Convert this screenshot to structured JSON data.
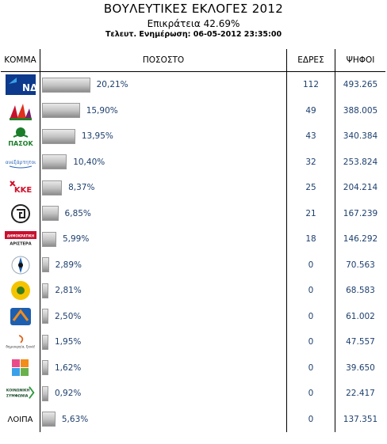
{
  "header": {
    "title": "ΒΟΥΛΕΥΤΙΚΕΣ ΕΚΛΟΓΕΣ 2012",
    "coverage": "Επικράτεια 42.69%",
    "updated": "Τελευτ. Ενημέρωση: 06-05-2012 23:35:00"
  },
  "columns": {
    "party": "ΚΟΜΜΑ",
    "percent": "ΠΟΣΟΣΤΟ",
    "seats": "ΕΔΡΕΣ",
    "votes": "ΨΗΦΟΙ"
  },
  "rows": [
    {
      "logo_icon": "nd-logo-icon",
      "logo_text": "ΝΔ",
      "percent": "20,21%",
      "share": 20.21,
      "seats": "112",
      "votes": "493.265"
    },
    {
      "logo_icon": "syriza-logo-icon",
      "logo_text": "",
      "percent": "15,90%",
      "share": 15.9,
      "seats": "49",
      "votes": "388.005"
    },
    {
      "logo_icon": "pasok-logo-icon",
      "logo_text": "ΠΑΣΟΚ",
      "percent": "13,95%",
      "share": 13.95,
      "seats": "43",
      "votes": "340.384"
    },
    {
      "logo_icon": "anel-logo-icon",
      "logo_text": "ανεξάρτητοι",
      "percent": "10,40%",
      "share": 10.4,
      "seats": "32",
      "votes": "253.824"
    },
    {
      "logo_icon": "kke-logo-icon",
      "logo_text": "ΚΚΕ",
      "percent": "8,37%",
      "share": 8.37,
      "seats": "25",
      "votes": "204.214"
    },
    {
      "logo_icon": "xa-logo-icon",
      "logo_text": "",
      "percent": "6,85%",
      "share": 6.85,
      "seats": "21",
      "votes": "167.239"
    },
    {
      "logo_icon": "dimar-logo-icon",
      "logo_text": "ΔΗΜΟΚΡΑΤΙΚΗ ΑΡΙΣΤΕΡΑ",
      "percent": "5,99%",
      "share": 5.99,
      "seats": "18",
      "votes": "146.292"
    },
    {
      "logo_icon": "laos-logo-icon",
      "logo_text": "",
      "percent": "2,89%",
      "share": 2.89,
      "seats": "0",
      "votes": "70.563"
    },
    {
      "logo_icon": "greens-logo-icon",
      "logo_text": "",
      "percent": "2,81%",
      "share": 2.81,
      "seats": "0",
      "votes": "68.583"
    },
    {
      "logo_icon": "da-logo-icon",
      "logo_text": "",
      "percent": "2,50%",
      "share": 2.5,
      "seats": "0",
      "votes": "61.002"
    },
    {
      "logo_icon": "drasi-logo-icon",
      "logo_text": "δημιουργία, ξανά!",
      "percent": "1,95%",
      "share": 1.95,
      "seats": "0",
      "votes": "47.557"
    },
    {
      "logo_icon": "party12-logo-icon",
      "logo_text": "",
      "percent": "1,62%",
      "share": 1.62,
      "seats": "0",
      "votes": "39.650"
    },
    {
      "logo_icon": "ks-logo-icon",
      "logo_text": "ΚΟΙΝΩΝΙΚΗ ΣΥΜΦΩΝΙΑ",
      "percent": "0,92%",
      "share": 0.92,
      "seats": "0",
      "votes": "22.417"
    },
    {
      "logo_icon": "",
      "logo_text": "ΛΟΙΠΑ",
      "percent": "5,63%",
      "share": 5.63,
      "seats": "0",
      "votes": "137.351"
    }
  ]
}
